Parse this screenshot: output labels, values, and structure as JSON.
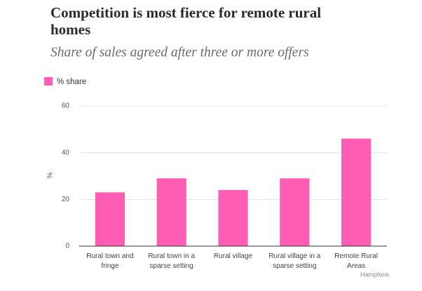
{
  "chart_data": {
    "type": "bar",
    "title": "Competition is most fierce for remote rural homes",
    "subtitle": "Share of sales agreed after three or more offers",
    "y_label": "%",
    "source": "Hamptons",
    "categories": [
      "Rural town and fringe",
      "Rural town in a sparse setting",
      "Rural village",
      "Rural village in a sparse setting",
      "Remote Rural Areas"
    ],
    "series": [
      {
        "name": "% share",
        "color": "#ff5cb3",
        "values": [
          23,
          29,
          24,
          29,
          46
        ]
      }
    ],
    "ylim": [
      0,
      60
    ],
    "yticks": [
      0,
      20,
      40,
      60
    ],
    "grid": true,
    "legend": "top-left"
  }
}
